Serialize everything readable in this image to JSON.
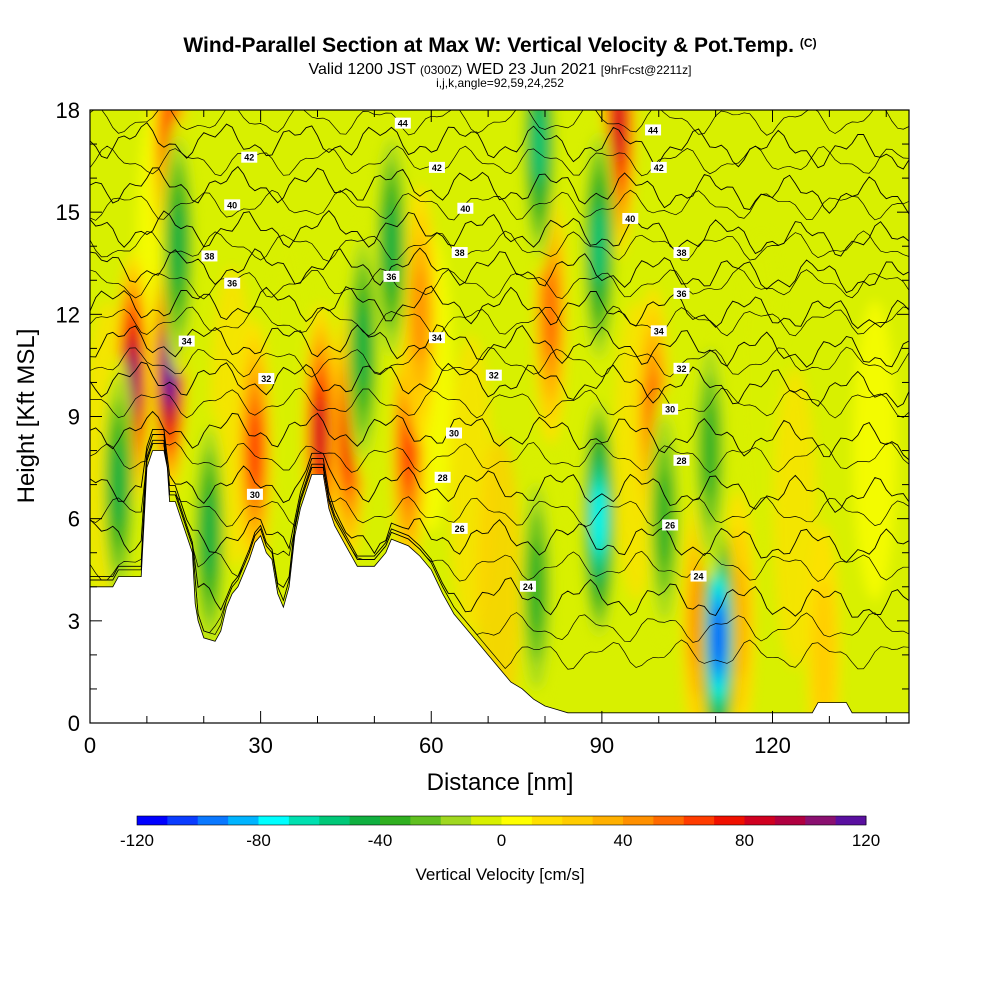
{
  "title": "Wind-Parallel Section at Max W: Vertical Velocity & Pot.Temp.",
  "copyright": "(C)",
  "subtitle_valid": "Valid 1200 JST",
  "subtitle_z": "(0300Z)",
  "subtitle_date": "WED 23 Jun 2021",
  "subtitle_fcst": "[9hrFcst@2211z]",
  "subtitle_indices": "i,j,k,angle=92,59,24,252",
  "chart_data": {
    "type": "heatmap",
    "xlabel": "Distance [nm]",
    "ylabel": "Height [Kft MSL]",
    "xlim": [
      0,
      144
    ],
    "ylim": [
      0,
      18
    ],
    "x_ticks": [
      0,
      30,
      60,
      90,
      120
    ],
    "y_ticks": [
      0,
      3,
      6,
      9,
      12,
      15,
      18
    ],
    "colorbar": {
      "label": "Vertical Velocity [cm/s]",
      "range": [
        -120,
        120
      ],
      "step": 10,
      "tick_values": [
        -120,
        -80,
        -40,
        0,
        40,
        80,
        120
      ],
      "colors": [
        "#0000ff",
        "#0a3cff",
        "#0a78ff",
        "#00b4ff",
        "#00ffff",
        "#00e0b0",
        "#00c878",
        "#10b040",
        "#30b020",
        "#60c020",
        "#a0d820",
        "#d8f000",
        "#ffff00",
        "#ffe000",
        "#ffcc00",
        "#ffb000",
        "#ff9000",
        "#ff6a00",
        "#ff3c00",
        "#f01000",
        "#d00020",
        "#b00040",
        "#8a1070",
        "#5a10a0"
      ]
    },
    "terrain_profile": [
      [
        0,
        4
      ],
      [
        4,
        4
      ],
      [
        5,
        4.3
      ],
      [
        9,
        4.3
      ],
      [
        10,
        7.5
      ],
      [
        11,
        8
      ],
      [
        13,
        8
      ],
      [
        13.6,
        7.5
      ],
      [
        14,
        6.5
      ],
      [
        15,
        6.5
      ],
      [
        16,
        6
      ],
      [
        18,
        5
      ],
      [
        18.5,
        3.5
      ],
      [
        19,
        3
      ],
      [
        20,
        2.5
      ],
      [
        22,
        2.4
      ],
      [
        23,
        2.7
      ],
      [
        24,
        3.4
      ],
      [
        25,
        3.8
      ],
      [
        26,
        4
      ],
      [
        28,
        4.8
      ],
      [
        29,
        5.3
      ],
      [
        30,
        5.5
      ],
      [
        31,
        5
      ],
      [
        32,
        4.8
      ],
      [
        33,
        3.8
      ],
      [
        34,
        3.4
      ],
      [
        35,
        4
      ],
      [
        36,
        5.5
      ],
      [
        37,
        6.3
      ],
      [
        38,
        6.8
      ],
      [
        39,
        7.3
      ],
      [
        41,
        7.3
      ],
      [
        42,
        6.3
      ],
      [
        43,
        5.8
      ],
      [
        45,
        5.2
      ],
      [
        46,
        4.9
      ],
      [
        47,
        4.6
      ],
      [
        50,
        4.6
      ],
      [
        52,
        5
      ],
      [
        53,
        5.4
      ],
      [
        56,
        5.2
      ],
      [
        58,
        4.9
      ],
      [
        60,
        4.5
      ],
      [
        62,
        3.8
      ],
      [
        64,
        3.2
      ],
      [
        66,
        2.8
      ],
      [
        68,
        2.4
      ],
      [
        70,
        2
      ],
      [
        72,
        1.6
      ],
      [
        74,
        1.2
      ],
      [
        76,
        1
      ],
      [
        78,
        0.7
      ],
      [
        80,
        0.5
      ],
      [
        82,
        0.4
      ],
      [
        84,
        0.3
      ],
      [
        86,
        0.3
      ],
      [
        88,
        0.3
      ],
      [
        120,
        0.3
      ],
      [
        127,
        0.3
      ],
      [
        128,
        0.6
      ],
      [
        133,
        0.6
      ],
      [
        134,
        0.3
      ],
      [
        144,
        0.3
      ]
    ],
    "updrafts": [
      {
        "x": 7.5,
        "z": 10,
        "w": 95
      },
      {
        "x": 14,
        "z": 10.5,
        "w": 120
      },
      {
        "x": 14,
        "z": 17,
        "w": 60
      },
      {
        "x": 29,
        "z": 8,
        "w": 60
      },
      {
        "x": 40.5,
        "z": 8.5,
        "w": 75
      },
      {
        "x": 45.5,
        "z": 8.5,
        "w": 65
      },
      {
        "x": 56,
        "z": 8,
        "w": 60
      },
      {
        "x": 58,
        "z": 12,
        "w": 40
      },
      {
        "x": 81,
        "z": 12,
        "w": 50
      },
      {
        "x": 93,
        "z": 17.5,
        "w": 80
      },
      {
        "x": 99,
        "z": 9,
        "w": 50
      },
      {
        "x": 107,
        "z": 3,
        "w": 40
      },
      {
        "x": 114,
        "z": 3,
        "w": 30
      },
      {
        "x": 129,
        "z": 2,
        "w": 20
      }
    ],
    "downdrafts": [
      {
        "x": 5,
        "z": 7,
        "w": -45
      },
      {
        "x": 15.5,
        "z": 14,
        "w": -50
      },
      {
        "x": 21,
        "z": 5.5,
        "w": -45
      },
      {
        "x": 48,
        "z": 11,
        "w": -45
      },
      {
        "x": 53,
        "z": 14,
        "w": -45
      },
      {
        "x": 78.5,
        "z": 4,
        "w": -40
      },
      {
        "x": 79,
        "z": 17,
        "w": -55
      },
      {
        "x": 89.5,
        "z": 6,
        "w": -75
      },
      {
        "x": 89.5,
        "z": 14,
        "w": -55
      },
      {
        "x": 101,
        "z": 6,
        "w": -40
      },
      {
        "x": 110.5,
        "z": 2.5,
        "w": -110
      },
      {
        "x": 109,
        "z": 8,
        "w": -40
      }
    ],
    "theta_contours": [
      {
        "label": "24",
        "z0": 3.8,
        "label_x": 107,
        "label_z": 4.3
      },
      {
        "label": "26",
        "z0": 5.5,
        "label_x": 102,
        "label_z": 5.8
      },
      {
        "label": "28",
        "z0": 7.0,
        "label_x": 104,
        "label_z": 7.7
      },
      {
        "label": "30",
        "z0": 8.6,
        "label_x": 102,
        "label_z": 9.2
      },
      {
        "label": "32",
        "z0": 10.1,
        "label_x": 104,
        "label_z": 10.4
      },
      {
        "label": "34",
        "z0": 11.2,
        "label_x": 100,
        "label_z": 11.5
      },
      {
        "label": "36",
        "z0": 12.3,
        "label_x": 104,
        "label_z": 12.6
      },
      {
        "label": "38",
        "z0": 13.4,
        "label_x": 104,
        "label_z": 13.8
      },
      {
        "label": "40",
        "z0": 14.5,
        "label_x": 95,
        "label_z": 14.8
      },
      {
        "label": "42",
        "z0": 15.8,
        "label_x": 100,
        "label_z": 16.3
      },
      {
        "label": "44",
        "z0": 17.1,
        "label_x": 99,
        "label_z": 17.4
      }
    ],
    "contour_label_spots": [
      {
        "label": "24",
        "x": 77,
        "z": 4.0
      },
      {
        "label": "26",
        "x": 65,
        "z": 5.7
      },
      {
        "label": "28",
        "x": 62,
        "z": 7.2
      },
      {
        "label": "30",
        "x": 29,
        "z": 6.7
      },
      {
        "label": "30",
        "x": 64,
        "z": 8.5
      },
      {
        "label": "32",
        "x": 31,
        "z": 10.1
      },
      {
        "label": "32",
        "x": 71,
        "z": 10.2
      },
      {
        "label": "34",
        "x": 17,
        "z": 11.2
      },
      {
        "label": "34",
        "x": 61,
        "z": 11.3
      },
      {
        "label": "36",
        "x": 25,
        "z": 12.9
      },
      {
        "label": "36",
        "x": 53,
        "z": 13.1
      },
      {
        "label": "38",
        "x": 21,
        "z": 13.7
      },
      {
        "label": "38",
        "x": 65,
        "z": 13.8
      },
      {
        "label": "40",
        "x": 25,
        "z": 15.2
      },
      {
        "label": "40",
        "x": 66,
        "z": 15.1
      },
      {
        "label": "42",
        "x": 28,
        "z": 16.6
      },
      {
        "label": "42",
        "x": 61,
        "z": 16.3
      },
      {
        "label": "44",
        "x": 55,
        "z": 17.6
      }
    ]
  }
}
